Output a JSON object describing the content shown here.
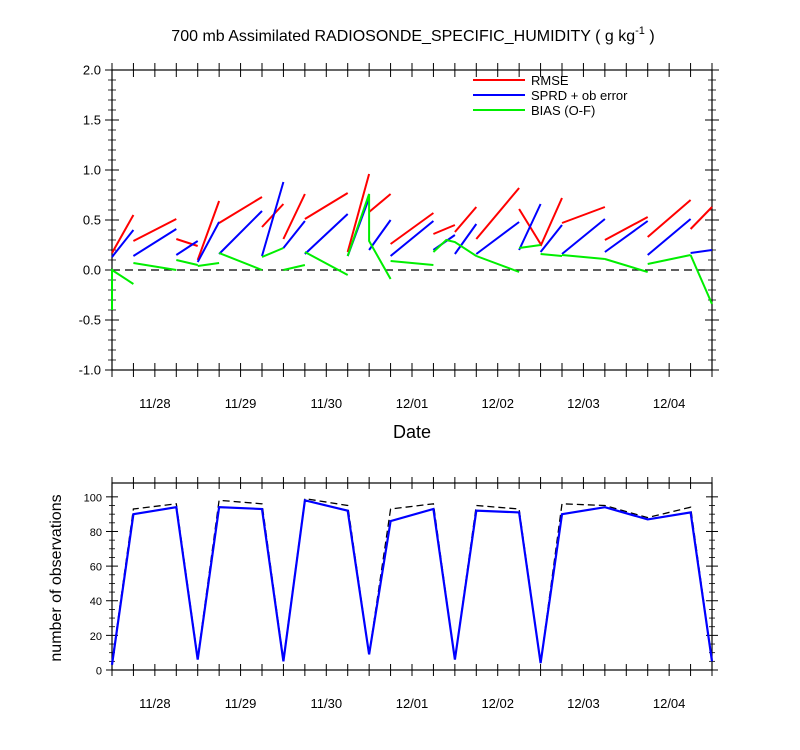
{
  "chart_data": [
    {
      "type": "line",
      "title_main": "700 mb Assimilated RADIOSONDE_SPECIFIC_HUMIDITY ( g kg",
      "title_sup": "-1",
      "title_end": " )",
      "xlabel": "Date",
      "ylabel": "",
      "x_tick_labels": [
        "11/28",
        "11/29",
        "11/30",
        "12/01",
        "12/02",
        "12/03",
        "12/04"
      ],
      "x_tick_positions": [
        0.5,
        1.5,
        2.5,
        3.5,
        4.5,
        5.5,
        6.5
      ],
      "xlim": [
        0,
        7.0
      ],
      "ylim": [
        -1.0,
        2.0
      ],
      "y_ticks": [
        -1.0,
        -0.5,
        0.0,
        0.5,
        1.0,
        1.5,
        2.0
      ],
      "y_tick_labels": [
        "-1.0",
        "-0.5",
        "0.0",
        "0.5",
        "1.0",
        "1.5",
        "2.0"
      ],
      "zero_line": "dashed",
      "legend_position": "top-right",
      "series": [
        {
          "name": "RMSE",
          "color": "#ff0000",
          "segments": [
            [
              [
                0.0,
                0.17
              ],
              [
                0.25,
                0.55
              ]
            ],
            [
              [
                0.25,
                0.29
              ],
              [
                0.75,
                0.51
              ]
            ],
            [
              [
                0.75,
                0.31
              ],
              [
                1.0,
                0.24
              ]
            ],
            [
              [
                1.0,
                0.1
              ],
              [
                1.25,
                0.69
              ]
            ],
            [
              [
                1.25,
                0.47
              ],
              [
                1.75,
                0.73
              ]
            ],
            [
              [
                1.75,
                0.43
              ],
              [
                2.0,
                0.66
              ]
            ],
            [
              [
                2.0,
                0.31
              ],
              [
                2.25,
                0.76
              ]
            ],
            [
              [
                2.25,
                0.51
              ],
              [
                2.75,
                0.77
              ]
            ],
            [
              [
                2.75,
                0.18
              ],
              [
                3.0,
                0.96
              ]
            ],
            [
              [
                3.0,
                0.58
              ],
              [
                3.25,
                0.76
              ]
            ],
            [
              [
                3.25,
                0.26
              ],
              [
                3.75,
                0.57
              ]
            ],
            [
              [
                3.75,
                0.36
              ],
              [
                4.0,
                0.45
              ]
            ],
            [
              [
                4.0,
                0.38
              ],
              [
                4.25,
                0.63
              ]
            ],
            [
              [
                4.25,
                0.31
              ],
              [
                4.75,
                0.82
              ]
            ],
            [
              [
                4.75,
                0.61
              ],
              [
                5.0,
                0.26
              ]
            ],
            [
              [
                5.0,
                0.24
              ],
              [
                5.25,
                0.72
              ]
            ],
            [
              [
                5.25,
                0.47
              ],
              [
                5.75,
                0.63
              ]
            ],
            [
              [
                5.75,
                0.3
              ],
              [
                6.25,
                0.53
              ]
            ],
            [
              [
                6.25,
                0.33
              ],
              [
                6.75,
                0.7
              ]
            ],
            [
              [
                6.75,
                0.41
              ],
              [
                7.0,
                0.63
              ]
            ]
          ]
        },
        {
          "name": "SPRD + ob error",
          "color": "#0000ff",
          "segments": [
            [
              [
                0.0,
                0.13
              ],
              [
                0.25,
                0.4
              ]
            ],
            [
              [
                0.25,
                0.14
              ],
              [
                0.75,
                0.41
              ]
            ],
            [
              [
                0.75,
                0.15
              ],
              [
                1.0,
                0.29
              ]
            ],
            [
              [
                1.0,
                0.08
              ],
              [
                1.25,
                0.48
              ]
            ],
            [
              [
                1.25,
                0.16
              ],
              [
                1.75,
                0.59
              ]
            ],
            [
              [
                1.75,
                0.14
              ],
              [
                2.0,
                0.88
              ]
            ],
            [
              [
                2.0,
                0.22
              ],
              [
                2.25,
                0.49
              ]
            ],
            [
              [
                2.25,
                0.16
              ],
              [
                2.75,
                0.56
              ]
            ],
            [
              [
                2.75,
                0.14
              ],
              [
                3.0,
                0.72
              ]
            ],
            [
              [
                3.0,
                0.2
              ],
              [
                3.25,
                0.5
              ]
            ],
            [
              [
                3.25,
                0.14
              ],
              [
                3.75,
                0.49
              ]
            ],
            [
              [
                3.75,
                0.2
              ],
              [
                4.0,
                0.35
              ]
            ],
            [
              [
                4.0,
                0.16
              ],
              [
                4.25,
                0.46
              ]
            ],
            [
              [
                4.25,
                0.16
              ],
              [
                4.75,
                0.48
              ]
            ],
            [
              [
                4.75,
                0.2
              ],
              [
                5.0,
                0.66
              ]
            ],
            [
              [
                5.0,
                0.18
              ],
              [
                5.25,
                0.45
              ]
            ],
            [
              [
                5.25,
                0.16
              ],
              [
                5.75,
                0.51
              ]
            ],
            [
              [
                5.75,
                0.18
              ],
              [
                6.25,
                0.49
              ]
            ],
            [
              [
                6.25,
                0.15
              ],
              [
                6.75,
                0.51
              ]
            ],
            [
              [
                6.75,
                0.17
              ],
              [
                7.0,
                0.2
              ]
            ]
          ]
        },
        {
          "name": "BIAS (O-F)",
          "color": "#00ee00",
          "segments": [
            [
              [
                0.0,
                -0.4
              ],
              [
                0.0,
                0.0
              ],
              [
                0.25,
                -0.14
              ]
            ],
            [
              [
                0.25,
                0.07
              ],
              [
                0.75,
                0.0
              ]
            ],
            [
              [
                0.75,
                0.1
              ],
              [
                1.0,
                0.05
              ]
            ],
            [
              [
                1.0,
                0.04
              ],
              [
                1.25,
                0.07
              ]
            ],
            [
              [
                1.25,
                0.17
              ],
              [
                1.75,
                0.0
              ]
            ],
            [
              [
                1.75,
                0.13
              ],
              [
                2.0,
                0.22
              ]
            ],
            [
              [
                2.0,
                0.0
              ],
              [
                2.25,
                0.05
              ]
            ],
            [
              [
                2.25,
                0.18
              ],
              [
                2.75,
                -0.05
              ]
            ],
            [
              [
                2.75,
                0.14
              ],
              [
                3.0,
                0.76
              ],
              [
                3.0,
                0.29
              ],
              [
                3.25,
                -0.09
              ]
            ],
            [
              [
                3.25,
                0.09
              ],
              [
                3.75,
                0.05
              ]
            ],
            [
              [
                3.75,
                0.18
              ],
              [
                3.9,
                0.3
              ],
              [
                4.0,
                0.28
              ],
              [
                4.25,
                0.14
              ]
            ],
            [
              [
                4.25,
                0.14
              ],
              [
                4.75,
                -0.02
              ]
            ],
            [
              [
                4.75,
                0.22
              ],
              [
                5.0,
                0.25
              ]
            ],
            [
              [
                5.0,
                0.16
              ],
              [
                5.25,
                0.14
              ]
            ],
            [
              [
                5.25,
                0.15
              ],
              [
                5.75,
                0.11
              ]
            ],
            [
              [
                5.75,
                0.11
              ],
              [
                6.25,
                -0.02
              ]
            ],
            [
              [
                6.25,
                0.06
              ],
              [
                6.75,
                0.15
              ]
            ],
            [
              [
                6.75,
                0.15
              ],
              [
                7.0,
                -0.34
              ]
            ]
          ]
        }
      ]
    },
    {
      "type": "line",
      "title": "",
      "xlabel": "",
      "ylabel": "number of observations",
      "x_tick_labels": [
        "11/28",
        "11/29",
        "11/30",
        "12/01",
        "12/02",
        "12/03",
        "12/04"
      ],
      "x_tick_positions": [
        0.5,
        1.5,
        2.5,
        3.5,
        4.5,
        5.5,
        6.5
      ],
      "xlim": [
        0,
        7.0
      ],
      "ylim": [
        0,
        108
      ],
      "y_ticks": [
        0,
        20,
        40,
        60,
        80,
        100
      ],
      "y_tick_labels": [
        "0",
        "20",
        "40",
        "60",
        "80",
        "100"
      ],
      "series": [
        {
          "name": "",
          "color": "#000000",
          "style": "dashed",
          "x": [
            0.0,
            0.25,
            0.75,
            1.0,
            1.25,
            1.75,
            2.0,
            2.25,
            2.75,
            3.0,
            3.25,
            3.75,
            4.0,
            4.25,
            4.75,
            5.0,
            5.25,
            5.75,
            6.25,
            6.75,
            7.0
          ],
          "values": [
            4,
            93,
            96,
            7,
            98,
            96,
            6,
            99,
            95,
            9,
            93,
            96,
            6,
            95,
            93,
            4,
            96,
            95,
            88,
            94,
            5
          ]
        },
        {
          "name": "",
          "color": "#0000ff",
          "style": "solid",
          "x": [
            0.0,
            0.25,
            0.75,
            1.0,
            1.25,
            1.75,
            2.0,
            2.25,
            2.75,
            3.0,
            3.25,
            3.75,
            4.0,
            4.25,
            4.75,
            5.0,
            5.25,
            5.75,
            6.25,
            6.75,
            7.0
          ],
          "values": [
            3,
            90,
            94,
            6,
            94,
            93,
            5,
            98,
            92,
            9,
            86,
            93,
            6,
            92,
            91,
            4,
            90,
            94,
            87,
            91,
            5
          ]
        }
      ]
    }
  ]
}
